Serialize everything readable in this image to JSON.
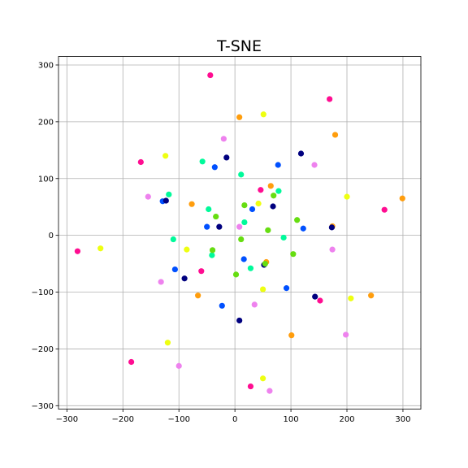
{
  "chart_data": {
    "type": "scatter",
    "title": "T-SNE",
    "xlabel": "",
    "ylabel": "",
    "xlim": [
      -315,
      332
    ],
    "ylim": [
      -306,
      315
    ],
    "xticks": [
      -300,
      -200,
      -100,
      0,
      100,
      200,
      300
    ],
    "yticks": [
      -300,
      -200,
      -100,
      0,
      100,
      200,
      300
    ],
    "grid": true,
    "legend": "none",
    "colors": {
      "hot-pink": "#ff0d91",
      "orange": "#ff9d0d",
      "yellow": "#eeff11",
      "violet": "#ee82ee",
      "spring-green": "#00fa9a",
      "blue": "#0050ff",
      "navy": "#00007f",
      "lime": "#66dd11"
    },
    "points": [
      {
        "x": -44,
        "y": 282,
        "c": "hot-pink"
      },
      {
        "x": 169,
        "y": 240,
        "c": "hot-pink"
      },
      {
        "x": -168,
        "y": 129,
        "c": "hot-pink"
      },
      {
        "x": 267,
        "y": 45,
        "c": "hot-pink"
      },
      {
        "x": 46,
        "y": 80,
        "c": "hot-pink"
      },
      {
        "x": -281,
        "y": -28,
        "c": "hot-pink"
      },
      {
        "x": -60,
        "y": -63,
        "c": "hot-pink"
      },
      {
        "x": 152,
        "y": -115,
        "c": "hot-pink"
      },
      {
        "x": -185,
        "y": -223,
        "c": "hot-pink"
      },
      {
        "x": 28,
        "y": -266,
        "c": "hot-pink"
      },
      {
        "x": 8,
        "y": 208,
        "c": "orange"
      },
      {
        "x": 179,
        "y": 177,
        "c": "orange"
      },
      {
        "x": 64,
        "y": 87,
        "c": "orange"
      },
      {
        "x": 299,
        "y": 65,
        "c": "orange"
      },
      {
        "x": -77,
        "y": 55,
        "c": "orange"
      },
      {
        "x": 174,
        "y": 16,
        "c": "orange"
      },
      {
        "x": 56,
        "y": -47,
        "c": "orange"
      },
      {
        "x": -66,
        "y": -106,
        "c": "orange"
      },
      {
        "x": 243,
        "y": -106,
        "c": "orange"
      },
      {
        "x": 101,
        "y": -176,
        "c": "orange"
      },
      {
        "x": 51,
        "y": 213,
        "c": "yellow"
      },
      {
        "x": -124,
        "y": 140,
        "c": "yellow"
      },
      {
        "x": 42,
        "y": 56,
        "c": "yellow"
      },
      {
        "x": 200,
        "y": 68,
        "c": "yellow"
      },
      {
        "x": -240,
        "y": -23,
        "c": "yellow"
      },
      {
        "x": -86,
        "y": -25,
        "c": "yellow"
      },
      {
        "x": 50,
        "y": -95,
        "c": "yellow"
      },
      {
        "x": 207,
        "y": -111,
        "c": "yellow"
      },
      {
        "x": -120,
        "y": -189,
        "c": "yellow"
      },
      {
        "x": 50,
        "y": -252,
        "c": "yellow"
      },
      {
        "x": -20,
        "y": 170,
        "c": "violet"
      },
      {
        "x": 142,
        "y": 124,
        "c": "violet"
      },
      {
        "x": -155,
        "y": 68,
        "c": "violet"
      },
      {
        "x": 8,
        "y": 15,
        "c": "violet"
      },
      {
        "x": 174,
        "y": -25,
        "c": "violet"
      },
      {
        "x": -132,
        "y": -82,
        "c": "violet"
      },
      {
        "x": 35,
        "y": -122,
        "c": "violet"
      },
      {
        "x": 198,
        "y": -175,
        "c": "violet"
      },
      {
        "x": -100,
        "y": -230,
        "c": "violet"
      },
      {
        "x": 62,
        "y": -274,
        "c": "violet"
      },
      {
        "x": -58,
        "y": 130,
        "c": "spring-green"
      },
      {
        "x": 11,
        "y": 107,
        "c": "spring-green"
      },
      {
        "x": -118,
        "y": 72,
        "c": "spring-green"
      },
      {
        "x": 78,
        "y": 78,
        "c": "spring-green"
      },
      {
        "x": -47,
        "y": 46,
        "c": "spring-green"
      },
      {
        "x": 17,
        "y": 23,
        "c": "spring-green"
      },
      {
        "x": -110,
        "y": -7,
        "c": "spring-green"
      },
      {
        "x": 87,
        "y": -4,
        "c": "spring-green"
      },
      {
        "x": -41,
        "y": -35,
        "c": "spring-green"
      },
      {
        "x": 28,
        "y": -58,
        "c": "spring-green"
      },
      {
        "x": -36,
        "y": 120,
        "c": "blue"
      },
      {
        "x": 77,
        "y": 124,
        "c": "blue"
      },
      {
        "x": -129,
        "y": 60,
        "c": "blue"
      },
      {
        "x": 31,
        "y": 46,
        "c": "blue"
      },
      {
        "x": -50,
        "y": 15,
        "c": "blue"
      },
      {
        "x": 122,
        "y": 12,
        "c": "blue"
      },
      {
        "x": -107,
        "y": -60,
        "c": "blue"
      },
      {
        "x": 16,
        "y": -42,
        "c": "blue"
      },
      {
        "x": 92,
        "y": -93,
        "c": "blue"
      },
      {
        "x": -23,
        "y": -124,
        "c": "blue"
      },
      {
        "x": -15,
        "y": 137,
        "c": "navy"
      },
      {
        "x": 118,
        "y": 144,
        "c": "navy"
      },
      {
        "x": -123,
        "y": 61,
        "c": "navy"
      },
      {
        "x": 68,
        "y": 51,
        "c": "navy"
      },
      {
        "x": -28,
        "y": 15,
        "c": "navy"
      },
      {
        "x": 173,
        "y": 14,
        "c": "navy"
      },
      {
        "x": -90,
        "y": -76,
        "c": "navy"
      },
      {
        "x": 52,
        "y": -52,
        "c": "navy"
      },
      {
        "x": 143,
        "y": -108,
        "c": "navy"
      },
      {
        "x": 8,
        "y": -150,
        "c": "navy"
      },
      {
        "x": 17,
        "y": 53,
        "c": "lime"
      },
      {
        "x": 69,
        "y": 70,
        "c": "lime"
      },
      {
        "x": -34,
        "y": 33,
        "c": "lime"
      },
      {
        "x": 111,
        "y": 27,
        "c": "lime"
      },
      {
        "x": 59,
        "y": 9,
        "c": "lime"
      },
      {
        "x": 11,
        "y": -7,
        "c": "lime"
      },
      {
        "x": -40,
        "y": -26,
        "c": "lime"
      },
      {
        "x": 104,
        "y": -33,
        "c": "lime"
      },
      {
        "x": 2,
        "y": -69,
        "c": "lime"
      },
      {
        "x": 54,
        "y": -50,
        "c": "lime"
      }
    ]
  }
}
